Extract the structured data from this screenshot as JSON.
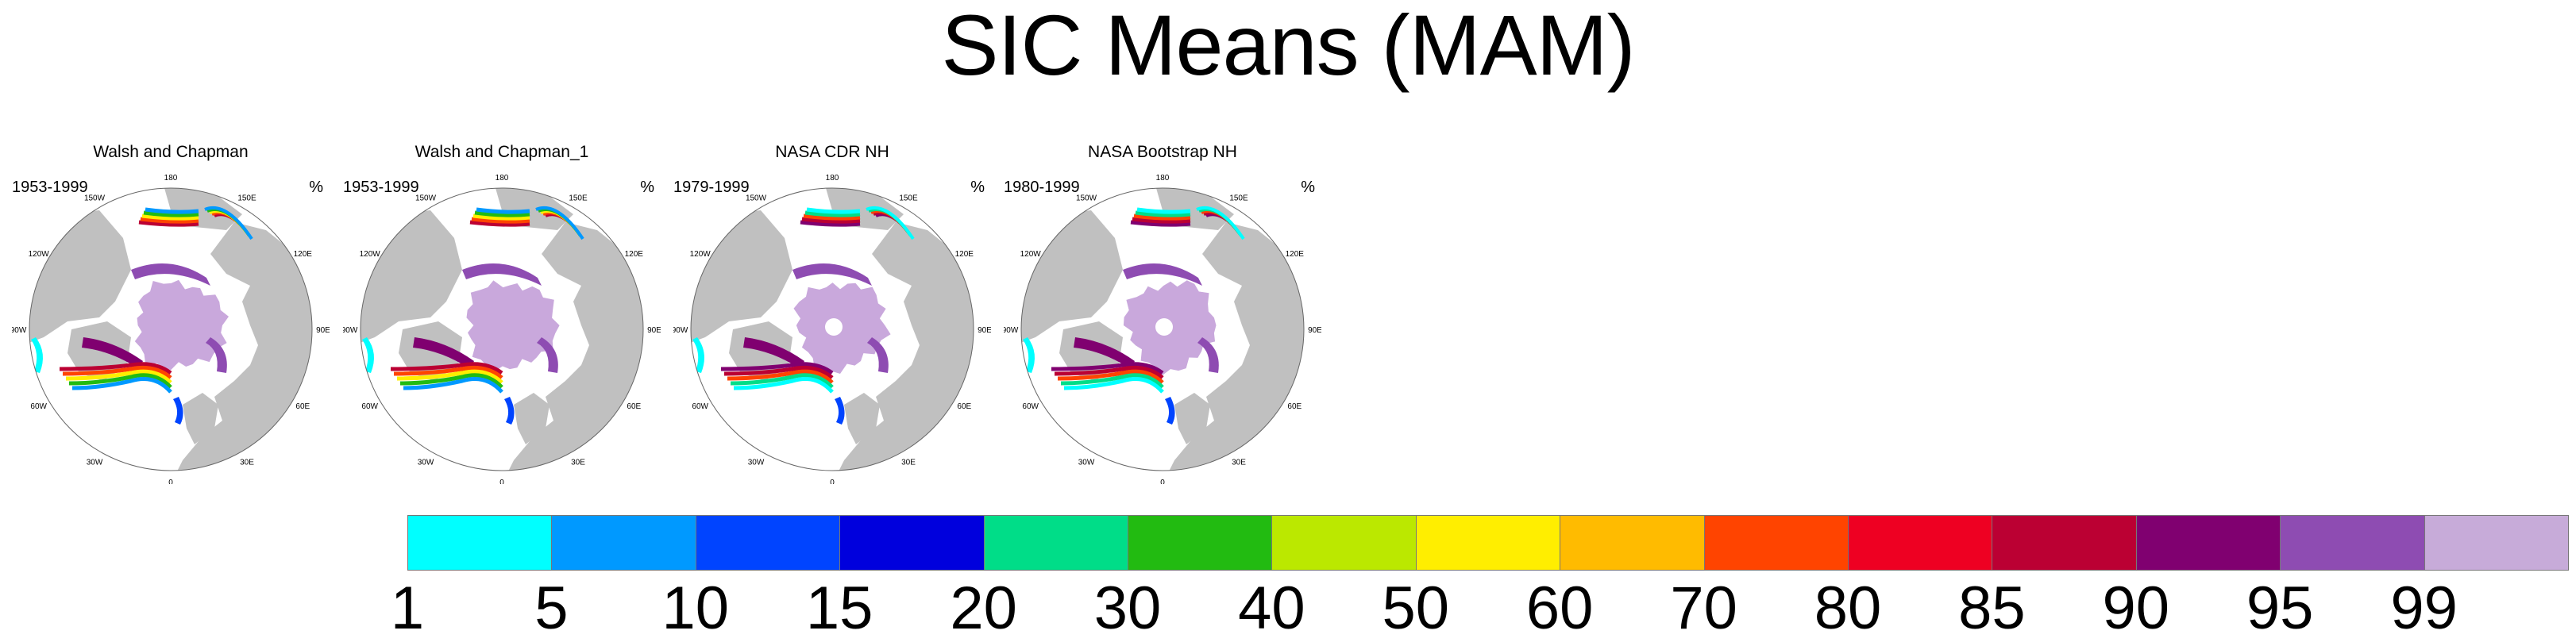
{
  "title": "SIC Means (MAM)",
  "panels": [
    {
      "title": "Walsh and Chapman",
      "period": "1953-1999",
      "unit": "%",
      "pole_hole": false,
      "style": "wc"
    },
    {
      "title": "Walsh and Chapman_1",
      "period": "1953-1999",
      "unit": "%",
      "pole_hole": false,
      "style": "wc"
    },
    {
      "title": "NASA CDR NH",
      "period": "1979-1999",
      "unit": "%",
      "pole_hole": true,
      "style": "sat"
    },
    {
      "title": "NASA Bootstrap NH",
      "period": "1980-1999",
      "unit": "%",
      "pole_hole": true,
      "style": "sat"
    }
  ],
  "lon_labels": [
    "180",
    "150E",
    "120E",
    "90E",
    "60E",
    "30E",
    "0",
    "30W",
    "60W",
    "90W",
    "120W",
    "150W"
  ],
  "colorbar": {
    "labels": [
      "1",
      "5",
      "10",
      "15",
      "20",
      "30",
      "40",
      "50",
      "60",
      "70",
      "80",
      "85",
      "90",
      "95",
      "99"
    ],
    "colors": [
      "#00ffff",
      "#0099ff",
      "#0044ff",
      "#0000dd",
      "#00dd88",
      "#22bb11",
      "#bbe800",
      "#ffee00",
      "#ffbb00",
      "#ff4400",
      "#ee0022",
      "#bb0033",
      "#800070",
      "#8e4cb2",
      "#c7abd9"
    ]
  },
  "colors": {
    "land": "#c0c0c0",
    "ocean": "#ffffff",
    "ice_core": "#c9a8dc"
  }
}
